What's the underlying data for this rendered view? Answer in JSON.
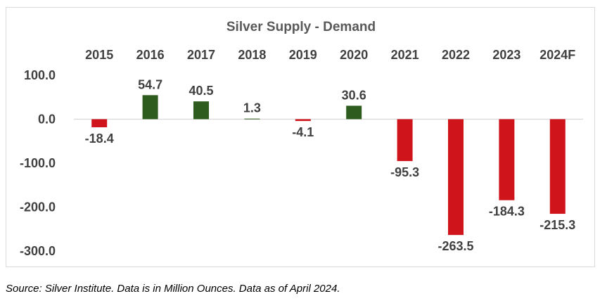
{
  "source_note": "Source: Silver Institute. Data is in Million Ounces. Data as of April 2024.",
  "chart_data": {
    "type": "bar",
    "title": "Silver Supply - Demand",
    "categories": [
      "2015",
      "2016",
      "2017",
      "2018",
      "2019",
      "2020",
      "2021",
      "2022",
      "2023",
      "2024F"
    ],
    "values": [
      -18.4,
      54.7,
      40.5,
      1.3,
      -4.1,
      30.6,
      -95.3,
      -263.5,
      -184.3,
      -215.3
    ],
    "data_labels": [
      "-18.4",
      "54.7",
      "40.5",
      "1.3",
      "-4.1",
      "30.6",
      "-95.3",
      "-263.5",
      "-184.3",
      "-215.3"
    ],
    "yticks": [
      100,
      0,
      -100,
      -200,
      -300
    ],
    "ytick_labels": [
      "100.0",
      "0.0",
      "-100.0",
      "-200.0",
      "-300.0"
    ],
    "ylim": [
      -300,
      100
    ],
    "xlabel": "",
    "ylabel": "",
    "grid": false,
    "legend": "none",
    "categories_position": "top",
    "colors": {
      "positive": "#2e5c1e",
      "negative": "#d0141b",
      "axis": "#d9d9d9"
    }
  }
}
